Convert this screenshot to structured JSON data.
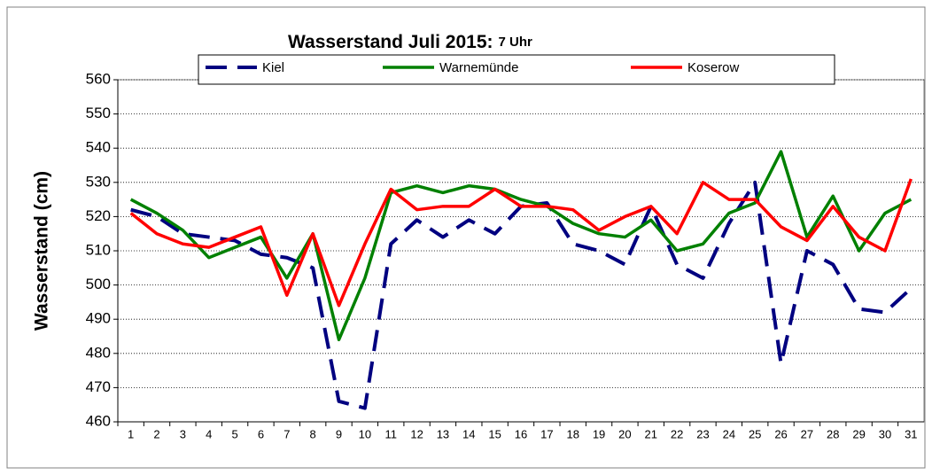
{
  "chart_data": {
    "type": "line",
    "title": "Wasserstand Juli 2015:",
    "subtitle": "7 Uhr",
    "y_label": "Wasserstand (cm)",
    "categories": [
      "1",
      "2",
      "3",
      "4",
      "5",
      "6",
      "7",
      "8",
      "9",
      "10",
      "11",
      "12",
      "13",
      "14",
      "15",
      "16",
      "17",
      "18",
      "19",
      "20",
      "21",
      "22",
      "23",
      "24",
      "25",
      "26",
      "27",
      "28",
      "29",
      "30",
      "31"
    ],
    "series": [
      {
        "name": "Kiel",
        "color": "#000080",
        "dashed": true,
        "values": [
          522,
          520,
          515,
          514,
          513,
          509,
          508,
          505,
          466,
          464,
          512,
          519,
          514,
          519,
          515,
          523,
          524,
          512,
          510,
          506,
          523,
          506,
          502,
          518,
          530,
          477,
          510,
          506,
          493,
          492,
          499
        ]
      },
      {
        "name": "Warnemünde",
        "color": "#008000",
        "values": [
          525,
          521,
          516,
          508,
          511,
          514,
          502,
          515,
          484,
          502,
          527,
          529,
          527,
          529,
          528,
          525,
          523,
          518,
          515,
          514,
          519,
          510,
          512,
          521,
          524,
          539,
          514,
          526,
          510,
          521,
          525
        ]
      },
      {
        "name": "Koserow",
        "color": "#ff0000",
        "values": [
          521,
          515,
          512,
          511,
          514,
          517,
          497,
          515,
          494,
          512,
          528,
          522,
          523,
          523,
          528,
          523,
          523,
          522,
          516,
          520,
          523,
          515,
          530,
          525,
          525,
          517,
          513,
          523,
          514,
          510,
          531
        ]
      }
    ],
    "ylim": [
      460,
      560
    ],
    "yticks": [
      460,
      470,
      480,
      490,
      500,
      510,
      520,
      530,
      540,
      550,
      560
    ],
    "grid": true
  }
}
